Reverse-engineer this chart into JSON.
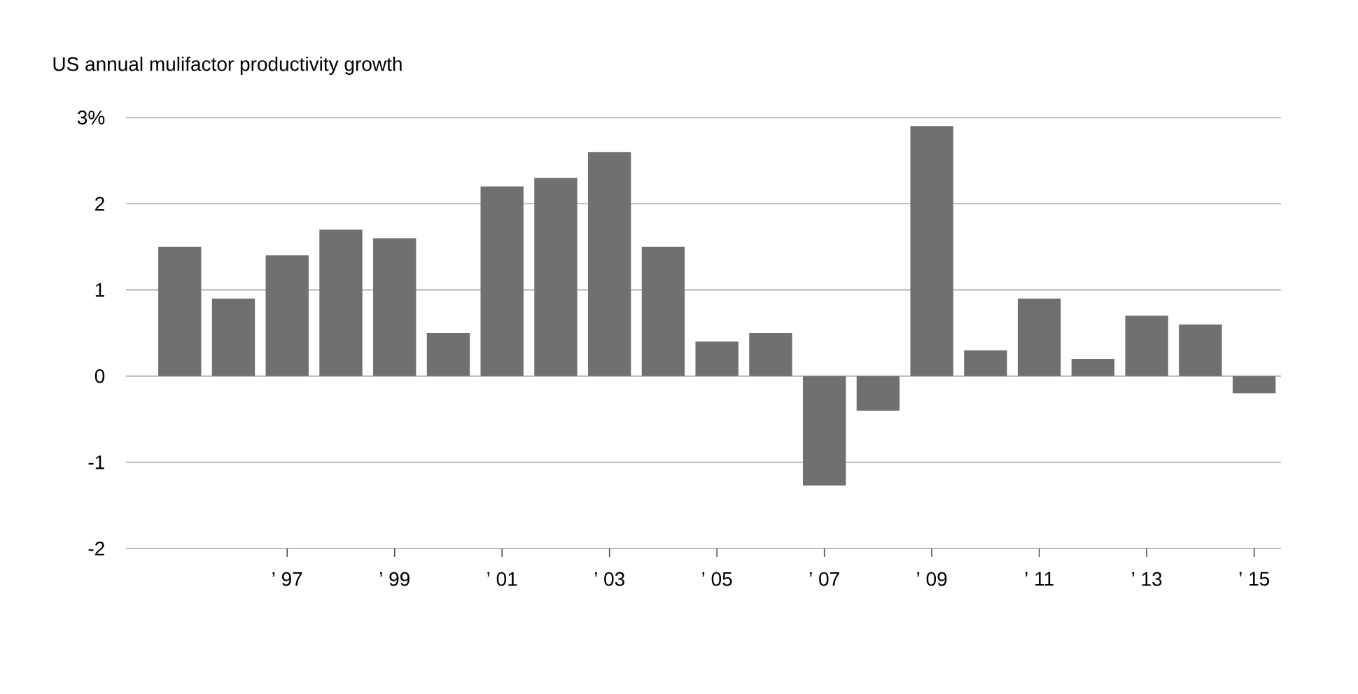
{
  "chart_data": {
    "type": "bar",
    "title": "US annual mulifactor productivity growth",
    "categories": [
      null,
      null,
      "’ 97",
      null,
      "’ 99",
      null,
      "’ 01",
      null,
      "’ 03",
      null,
      "’ 05",
      null,
      "’ 07",
      null,
      "’ 09",
      null,
      "’ 11",
      null,
      "’ 13",
      null,
      "’ 15"
    ],
    "values": [
      1.5,
      0.9,
      1.4,
      1.7,
      1.6,
      0.5,
      2.2,
      2.3,
      2.6,
      1.5,
      0.4,
      0.5,
      -1.27,
      -0.4,
      2.9,
      0.3,
      0.9,
      0.2,
      0.7,
      0.6,
      -0.2
    ],
    "color": "#707070",
    "ylim": [
      -2,
      3
    ],
    "yticks": [
      -2,
      -1,
      0,
      1,
      2,
      {
        "value": 3,
        "label": "3%"
      }
    ],
    "grid": "y"
  }
}
